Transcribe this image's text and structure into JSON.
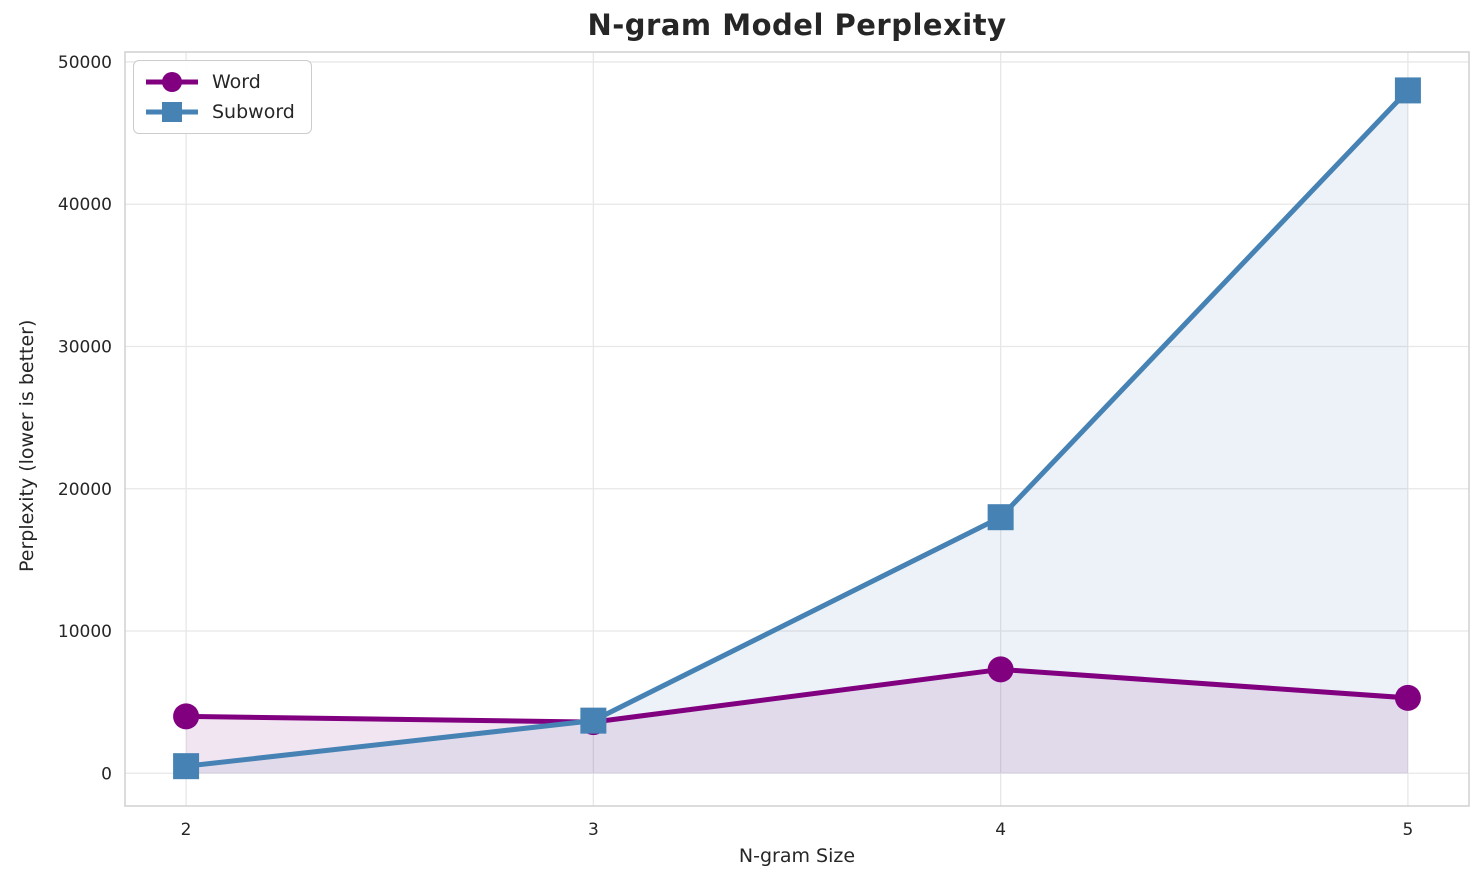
{
  "chart_data": {
    "type": "line",
    "title": "N-gram Model Perplexity",
    "xlabel": "N-gram Size",
    "ylabel": "Perplexity (lower is better)",
    "x": [
      2,
      3,
      4,
      5
    ],
    "series": [
      {
        "name": "Word",
        "color": "#800080",
        "marker": "circle",
        "values": [
          4000,
          3600,
          7300,
          5300
        ],
        "fill_to_zero": true,
        "fill_alpha": 0.1
      },
      {
        "name": "Subword",
        "color": "#4682b4",
        "marker": "square",
        "values": [
          500,
          3700,
          18000,
          48000
        ],
        "fill_to_zero": true,
        "fill_alpha": 0.1
      }
    ],
    "xticks": [
      2,
      3,
      4,
      5
    ],
    "yticks": [
      0,
      10000,
      20000,
      30000,
      40000,
      50000
    ],
    "xlim": [
      1.85,
      5.15
    ],
    "ylim": [
      -2300,
      50700
    ],
    "grid": true,
    "grid_color": "#e7e7e7",
    "spine_color": "#d0d0d0",
    "text_color": "#262626",
    "legend_position": "upper-left"
  }
}
